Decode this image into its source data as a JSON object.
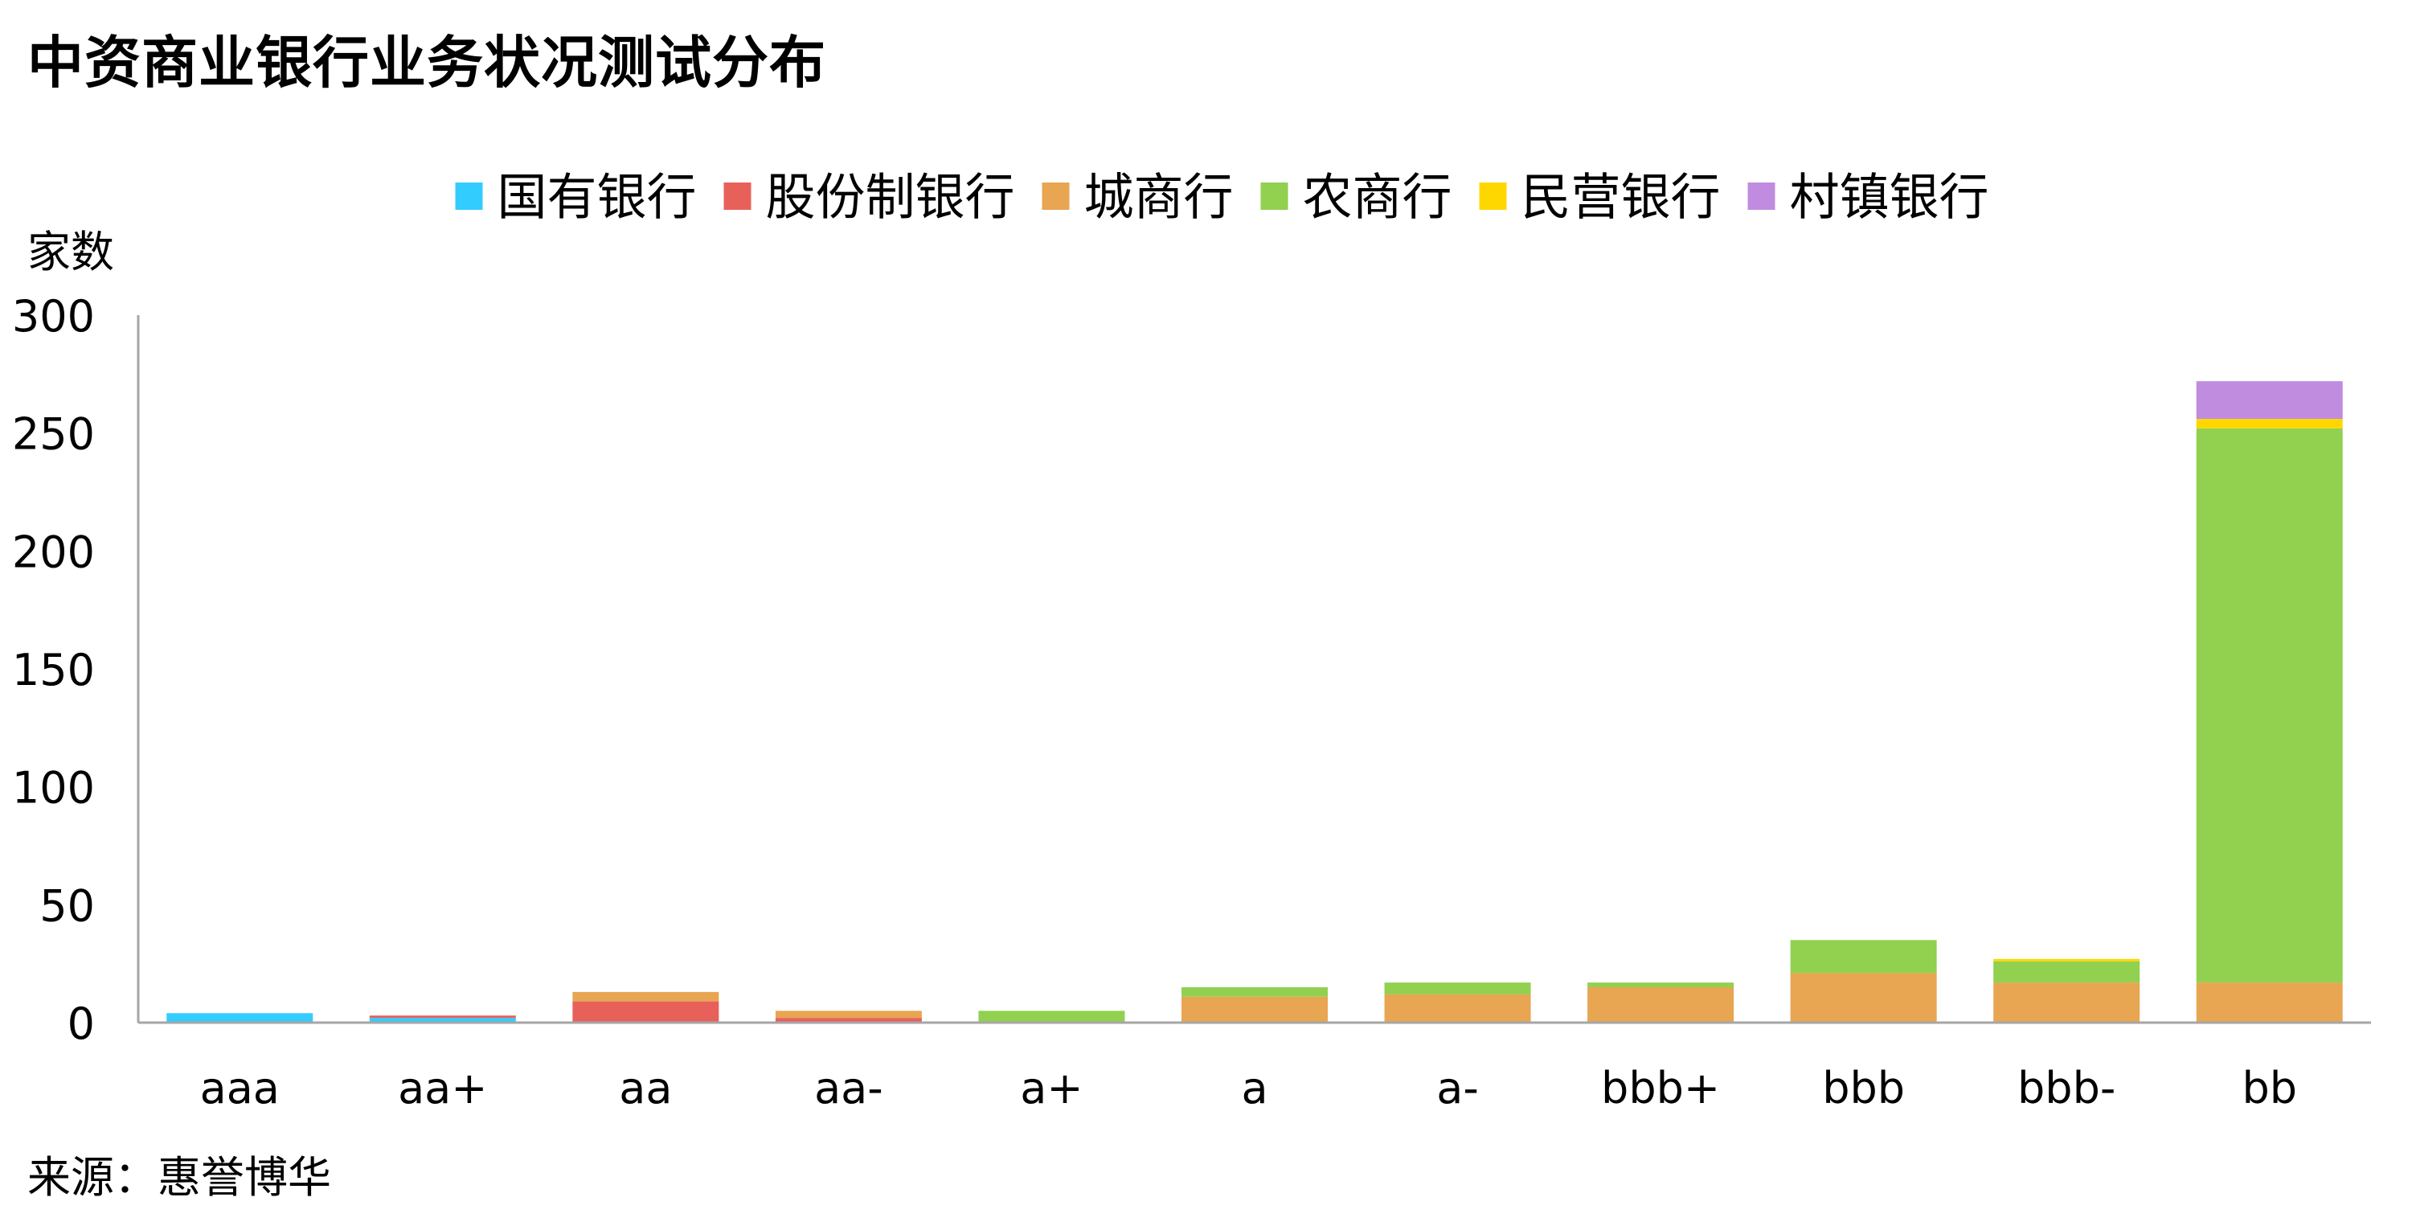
{
  "title": "中资商业银行业务状况测试分布",
  "source": "来源：惠誉博华",
  "chart_data": {
    "type": "bar",
    "stacked": true,
    "title": "中资商业银行业务状况测试分布",
    "ylabel": "家数",
    "xlabel": "",
    "ylim": [
      0,
      300
    ],
    "yticks": [
      0,
      50,
      100,
      150,
      200,
      250,
      300
    ],
    "grid": false,
    "legend_position": "top",
    "categories": [
      "aaa",
      "aa+",
      "aa",
      "aa-",
      "a+",
      "a",
      "a-",
      "bbb+",
      "bbb",
      "bbb-",
      "bb"
    ],
    "series": [
      {
        "name": "国有银行",
        "color": "#33CCFF",
        "values": [
          4,
          2,
          0,
          0,
          0,
          0,
          0,
          0,
          0,
          0,
          0
        ]
      },
      {
        "name": "股份制银行",
        "color": "#E8605A",
        "values": [
          0,
          1,
          9,
          2,
          0,
          0,
          0,
          0,
          0,
          0,
          0
        ]
      },
      {
        "name": "城商行",
        "color": "#E8A552",
        "values": [
          0,
          0,
          4,
          3,
          0,
          11,
          12,
          15,
          21,
          17,
          17
        ]
      },
      {
        "name": "农商行",
        "color": "#92D050",
        "values": [
          0,
          0,
          0,
          0,
          5,
          4,
          5,
          2,
          14,
          9,
          235
        ]
      },
      {
        "name": "民营银行",
        "color": "#FFD700",
        "values": [
          0,
          0,
          0,
          0,
          0,
          0,
          0,
          0,
          0,
          1,
          4
        ]
      },
      {
        "name": "村镇银行",
        "color": "#C08CE0",
        "values": [
          0,
          0,
          0,
          0,
          0,
          0,
          0,
          0,
          0,
          0,
          16
        ]
      }
    ]
  }
}
